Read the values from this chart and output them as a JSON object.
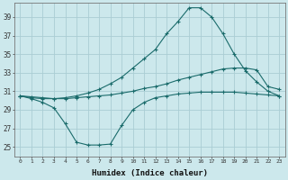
{
  "x": [
    0,
    1,
    2,
    3,
    4,
    5,
    6,
    7,
    8,
    9,
    10,
    11,
    12,
    13,
    14,
    15,
    16,
    17,
    18,
    19,
    20,
    21,
    22,
    23
  ],
  "line1": [
    30.5,
    30.3,
    30.2,
    30.2,
    30.3,
    30.5,
    30.8,
    31.2,
    31.8,
    32.5,
    33.5,
    34.5,
    35.5,
    37.2,
    38.5,
    40.0,
    40.0,
    39.0,
    37.2,
    35.0,
    33.2,
    32.0,
    31.0,
    30.5
  ],
  "line2": [
    30.5,
    30.4,
    30.3,
    30.2,
    30.2,
    30.3,
    30.4,
    30.5,
    30.6,
    30.8,
    31.0,
    31.3,
    31.5,
    31.8,
    32.2,
    32.5,
    32.8,
    33.1,
    33.4,
    33.5,
    33.5,
    33.3,
    31.5,
    31.2
  ],
  "line3": [
    30.5,
    30.2,
    29.8,
    29.2,
    27.5,
    25.5,
    25.2,
    25.2,
    25.3,
    27.3,
    29.0,
    29.8,
    30.3,
    30.5,
    30.7,
    30.8,
    30.9,
    30.9,
    30.9,
    30.9,
    30.8,
    30.7,
    30.6,
    30.5
  ],
  "line_color": "#1a6b6b",
  "bg_color": "#cce8ec",
  "grid_color": "#aacdd4",
  "xlabel": "Humidex (Indice chaleur)",
  "yticks": [
    25,
    27,
    29,
    31,
    33,
    35,
    37,
    39
  ],
  "xticks": [
    0,
    1,
    2,
    3,
    4,
    5,
    6,
    7,
    8,
    9,
    10,
    11,
    12,
    13,
    14,
    15,
    16,
    17,
    18,
    19,
    20,
    21,
    22,
    23
  ],
  "ylim": [
    24.0,
    40.5
  ],
  "xlim": [
    -0.5,
    23.5
  ]
}
